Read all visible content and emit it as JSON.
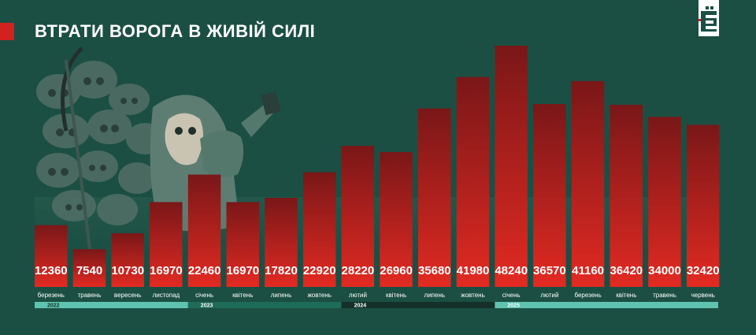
{
  "header": {
    "title": "ВТРАТИ ВОРОГА В ЖИВІЙ СИЛІ",
    "logo_text": "Є"
  },
  "colors": {
    "background": "#1c4f43",
    "accent": "#d2221f",
    "bar_top": "#7a1718",
    "bar_bottom": "#e22a22",
    "timeline": "#5fc3b1",
    "timeline_dark": "#143028"
  },
  "chart_data": {
    "type": "bar",
    "title": "ВТРАТИ ВОРОГА В ЖИВІЙ СИЛІ",
    "categories": [
      "березень",
      "травень",
      "вересень",
      "листопад",
      "січень",
      "квітень",
      "липень",
      "жовтень",
      "лютий",
      "квітень",
      "липень",
      "жовтень",
      "січень",
      "лютий",
      "березень",
      "квітень",
      "травень",
      "червень"
    ],
    "values": [
      12360,
      7540,
      10730,
      16970,
      22460,
      16970,
      17820,
      22920,
      28220,
      26960,
      35680,
      41980,
      48240,
      36570,
      41160,
      36420,
      34000,
      32420
    ],
    "years": [
      {
        "label": "2022",
        "start": 0,
        "end": 3
      },
      {
        "label": "2023",
        "start": 4,
        "end": 7
      },
      {
        "label": "2024",
        "start": 8,
        "end": 11
      },
      {
        "label": "2025",
        "start": 12,
        "end": 17
      }
    ],
    "ylim": [
      0,
      50000
    ],
    "grid": false,
    "legend": "none"
  }
}
